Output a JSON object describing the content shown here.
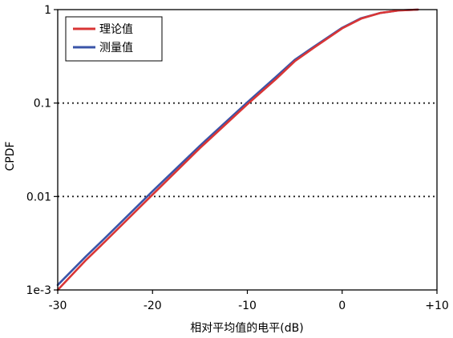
{
  "chart_data": {
    "type": "line",
    "xlabel": "相对平均值的电平(dB)",
    "ylabel": "CPDF",
    "xlim": [
      -30,
      10
    ],
    "ylim": [
      0.001,
      1
    ],
    "yscale": "log",
    "x_ticks": [
      -30,
      -20,
      -10,
      0,
      10
    ],
    "x_tick_labels": [
      "-30",
      "-20",
      "-10",
      "0",
      "+10"
    ],
    "y_ticks": [
      0.001,
      0.01,
      0.1,
      1
    ],
    "y_tick_labels": [
      "1e-3",
      "0.01",
      "0.1",
      "1"
    ],
    "grid": "horizontal dotted at 0.01 and 0.1",
    "legend_position": "top-left",
    "series": [
      {
        "name": "理论值",
        "color": "#d93535",
        "x": [
          -30,
          -27,
          -25,
          -20,
          -15,
          -10,
          -7,
          -5,
          -3,
          0,
          2,
          4,
          6,
          8
        ],
        "y": [
          0.001,
          0.0021,
          0.0033,
          0.0105,
          0.033,
          0.097,
          0.18,
          0.28,
          0.39,
          0.63,
          0.8,
          0.92,
          0.98,
          1.0
        ]
      },
      {
        "name": "测量值",
        "color": "#3a54a8",
        "x": [
          -30,
          -27,
          -25,
          -20,
          -15,
          -10,
          -7,
          -5,
          -3,
          0,
          2,
          4,
          6,
          8
        ],
        "y": [
          0.00113,
          0.0023,
          0.0036,
          0.0114,
          0.035,
          0.102,
          0.19,
          0.29,
          0.4,
          0.64,
          0.81,
          0.92,
          0.98,
          1.0
        ]
      }
    ]
  }
}
